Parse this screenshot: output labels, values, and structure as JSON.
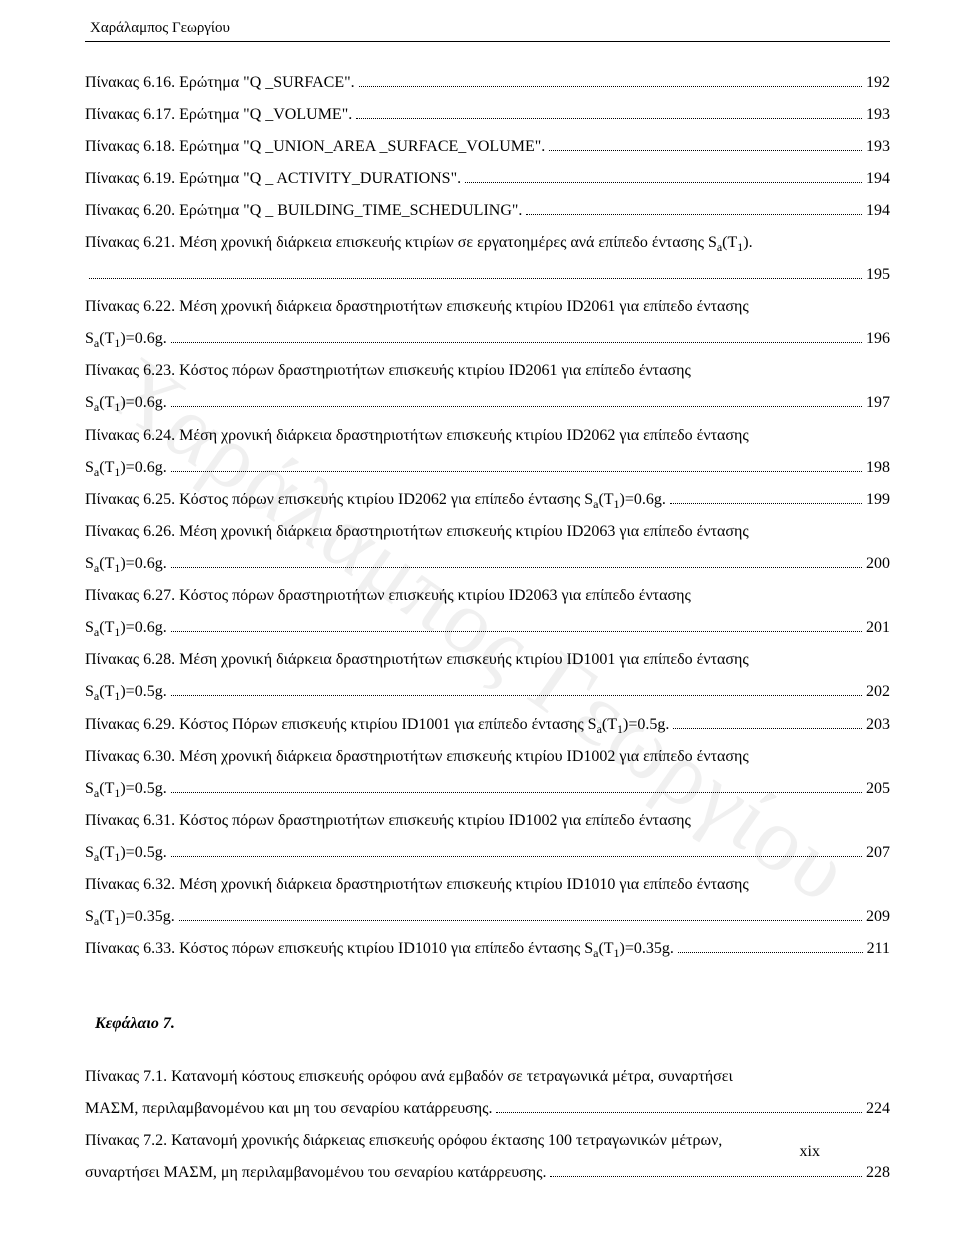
{
  "header": {
    "author": "Χαράλαμπος Γεωργίου"
  },
  "watermark": "Χαράλαμπος Γεωργίου",
  "chapter7_title": "Κεφάλαιο 7.",
  "page_number": "xix",
  "toc6": [
    {
      "text_pre": "Πίνακας 6.16. Ερώτημα \"Q _SURFACE\".",
      "page": "192"
    },
    {
      "text_pre": "Πίνακας 6.17. Ερώτημα \"Q _VOLUME\".",
      "page": "193"
    },
    {
      "text_pre": "Πίνακας 6.18. Ερώτημα \"Q _UNION_AREA _SURFACE_VOLUME\".",
      "page": "193"
    },
    {
      "text_pre": "Πίνακας 6.19. Ερώτημα \"Q _ ACTIVITY_DURATIONS\".",
      "page": "194"
    },
    {
      "text_pre": "Πίνακας 6.20. Ερώτημα \"Q _ BUILDING_TIME_SCHEDULING\".",
      "page": "194"
    },
    {
      "text_pre": "Πίνακας 6.21. Μέση χρονική διάρκεια επισκευής κτιρίων σε εργατοημέρες ανά επίπεδο έντασης S",
      "sub": "a",
      "text_post": "(T",
      "sub2": "1",
      "text_end": ").",
      "line2": "",
      "page": "195"
    },
    {
      "text_pre": "Πίνακας 6.22. Μέση χρονική διάρκεια δραστηριοτήτων επισκευής κτιρίου ID2061 για επίπεδο έντασης",
      "line2_pre": "S",
      "line2_sub": "a",
      "line2_mid": "(T",
      "line2_sub2": "1",
      "line2_end": ")=0.6g.",
      "page": "196"
    },
    {
      "text_pre": "Πίνακας 6.23. Κόστος πόρων δραστηριοτήτων επισκευής κτιρίου ID2061 για επίπεδο έντασης",
      "line2_pre": "S",
      "line2_sub": "a",
      "line2_mid": "(T",
      "line2_sub2": "1",
      "line2_end": ")=0.6g.",
      "page": "197"
    },
    {
      "text_pre": "Πίνακας 6.24. Μέση χρονική διάρκεια δραστηριοτήτων επισκευής κτιρίου ID2062 για επίπεδο έντασης",
      "line2_pre": "S",
      "line2_sub": "a",
      "line2_mid": "(T",
      "line2_sub2": "1",
      "line2_end": ")=0.6g.",
      "page": "198"
    },
    {
      "text_pre": "Πίνακας 6.25. Κόστος πόρων επισκευής κτιρίου ID2062 για επίπεδο έντασης S",
      "sub": "a",
      "text_post": "(T",
      "sub2": "1",
      "text_end": ")=0.6g.",
      "page": "199"
    },
    {
      "text_pre": "Πίνακας 6.26. Μέση χρονική διάρκεια δραστηριοτήτων επισκευής κτιρίου ID2063 για επίπεδο έντασης",
      "line2_pre": "S",
      "line2_sub": "a",
      "line2_mid": "(T",
      "line2_sub2": "1",
      "line2_end": ")=0.6g.",
      "page": "200"
    },
    {
      "text_pre": "Πίνακας 6.27. Κόστος πόρων δραστηριοτήτων επισκευής κτιρίου ID2063 για επίπεδο έντασης",
      "line2_pre": "S",
      "line2_sub": "a",
      "line2_mid": "(T",
      "line2_sub2": "1",
      "line2_end": ")=0.6g.",
      "page": "201"
    },
    {
      "text_pre": "Πίνακας 6.28. Μέση χρονική διάρκεια δραστηριοτήτων επισκευής κτιρίου ID1001 για επίπεδο έντασης",
      "line2_pre": "S",
      "line2_sub": "a",
      "line2_mid": "(T",
      "line2_sub2": "1",
      "line2_end": ")=0.5g.",
      "page": "202"
    },
    {
      "text_pre": "Πίνακας 6.29. Κόστος Πόρων επισκευής κτιρίου ID1001 για επίπεδο έντασης S",
      "sub": "a",
      "text_post": "(T",
      "sub2": "1",
      "text_end": ")=0.5g.",
      "page": "203"
    },
    {
      "text_pre": "Πίνακας 6.30. Μέση χρονική διάρκεια δραστηριοτήτων επισκευής κτιρίου ID1002 για επίπεδο έντασης",
      "line2_pre": "S",
      "line2_sub": "a",
      "line2_mid": "(T",
      "line2_sub2": "1",
      "line2_end": ")=0.5g.",
      "page": "205"
    },
    {
      "text_pre": "Πίνακας 6.31. Κόστος πόρων δραστηριοτήτων επισκευής κτιρίου ID1002 για επίπεδο έντασης",
      "line2_pre": "S",
      "line2_sub": "a",
      "line2_mid": "(T",
      "line2_sub2": "1",
      "line2_end": ")=0.5g.",
      "page": "207"
    },
    {
      "text_pre": "Πίνακας 6.32. Μέση χρονική διάρκεια δραστηριοτήτων επισκευής κτιρίου ID1010 για επίπεδο έντασης",
      "line2_pre": "S",
      "line2_sub": "a",
      "line2_mid": "(T",
      "line2_sub2": "1",
      "line2_end": ")=0.35g.",
      "page": "209"
    },
    {
      "text_pre": "Πίνακας 6.33. Κόστος πόρων επισκευής κτιρίου ID1010 για επίπεδο έντασης S",
      "sub": "a",
      "text_post": "(T",
      "sub2": "1",
      "text_end": ")=0.35g.",
      "page": "211"
    }
  ],
  "toc7": [
    {
      "text_pre": "Πίνακας 7.1. Κατανομή κόστους επισκευής ορόφου ανά εμβαδόν σε τετραγωνικά μέτρα, συναρτήσει",
      "line2": "ΜΑΣΜ, περιλαμβανομένου και μη του σεναρίου κατάρρευσης.",
      "page": "224"
    },
    {
      "text_pre": "Πίνακας 7.2. Κατανομή χρονικής διάρκειας επισκευής ορόφου έκτασης 100 τετραγωνικών μέτρων,",
      "line2": "συναρτήσει ΜΑΣΜ, μη περιλαμβανομένου του σεναρίου κατάρρευσης.",
      "page": "228"
    }
  ]
}
